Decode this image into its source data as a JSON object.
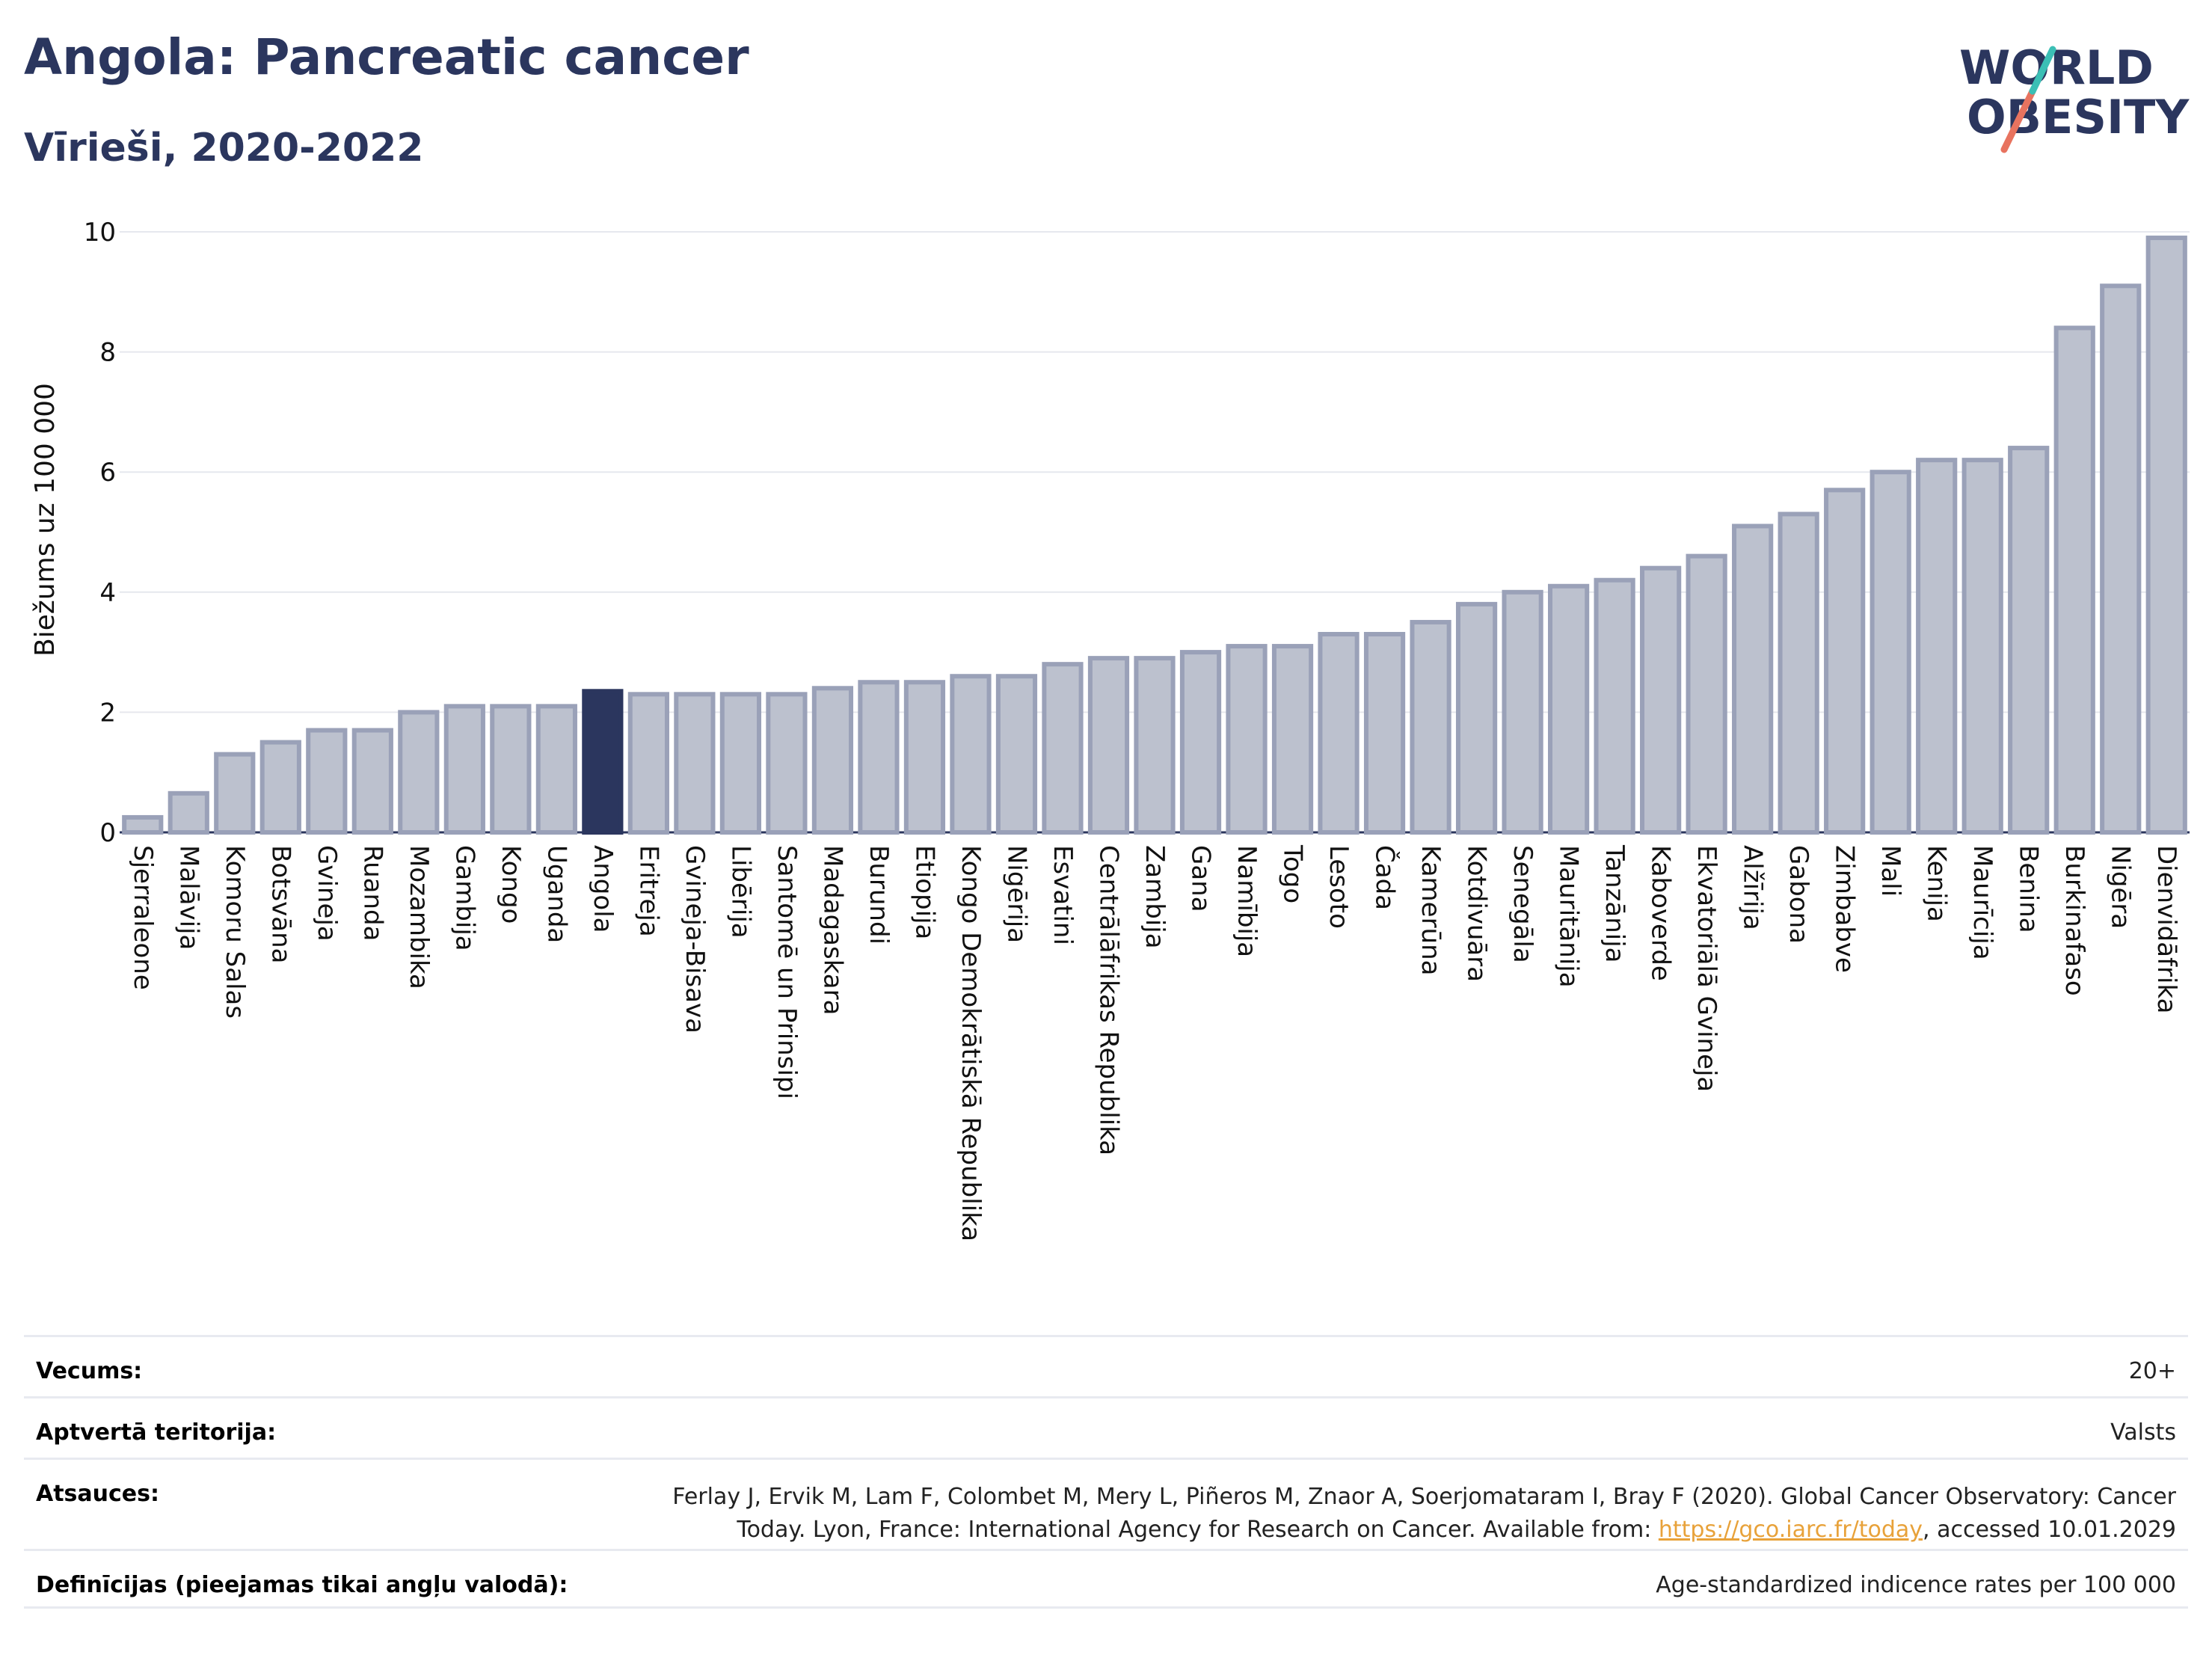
{
  "title": "Angola: Pancreatic cancer",
  "subtitle": "Vīrieši, 2020-2022",
  "logo": {
    "line1": "WORLD",
    "line2": "OBESITY"
  },
  "colors": {
    "highlight": "#2b365e",
    "bar": "#bcc1ce",
    "bar_stroke": "#9aa1b8",
    "grid": "#e6e8ee",
    "link": "#e8a23a"
  },
  "chart_data": {
    "type": "bar",
    "ylabel": "Biežums uz 100 000",
    "xlabel": "",
    "ylim": [
      0,
      10
    ],
    "yticks": [
      0,
      2,
      4,
      6,
      8,
      10
    ],
    "grid": true,
    "highlight": "Angola",
    "categories": [
      "Sjerraleone",
      "Malāvija",
      "Komoru Salas",
      "Botsvāna",
      "Gvineja",
      "Ruanda",
      "Mozambika",
      "Gambija",
      "Kongo",
      "Uganda",
      "Angola",
      "Eritreja",
      "Gvineja-Bisava",
      "Libērija",
      "Santomē un Prinsipi",
      "Madagaskara",
      "Burundi",
      "Etiopija",
      "Kongo Demokrātiskā Republika",
      "Nigērija",
      "Esvatini",
      "Centrālāfrikas Republika",
      "Zambija",
      "Gana",
      "Namībija",
      "Togo",
      "Lesoto",
      "Čada",
      "Kamerūna",
      "Kotdivuāra",
      "Senegāla",
      "Mauritānija",
      "Tanzānija",
      "Kaboverde",
      "Ekvatoriālā Gvineja",
      "Alžīrija",
      "Gabona",
      "Zimbabve",
      "Mali",
      "Kenija",
      "Maurīcija",
      "Benina",
      "Burkinafaso",
      "Nigēra",
      "Dienvidāfrika"
    ],
    "values": [
      0.25,
      0.65,
      1.3,
      1.5,
      1.7,
      1.7,
      2.0,
      2.1,
      2.1,
      2.1,
      2.35,
      2.3,
      2.3,
      2.3,
      2.3,
      2.4,
      2.5,
      2.5,
      2.6,
      2.6,
      2.8,
      2.9,
      2.9,
      3.0,
      3.1,
      3.1,
      3.3,
      3.3,
      3.5,
      3.8,
      4.0,
      4.1,
      4.2,
      4.4,
      4.6,
      5.1,
      5.3,
      5.7,
      6.0,
      6.2,
      6.2,
      6.4,
      8.4,
      9.1,
      9.9
    ]
  },
  "meta": {
    "age_label": "Vecums:",
    "age_value": "20+",
    "territory_label": "Aptvertā teritorija:",
    "territory_value": "Valsts",
    "refs_label": "Atsauces:",
    "refs_line1": "Ferlay J, Ervik M, Lam F, Colombet M, Mery L, Piñeros M, Znaor A, Soerjomataram I, Bray F (2020). Global Cancer Observatory: Cancer",
    "refs_line2_pre": "Today. Lyon, France: International Agency for Research on Cancer. Available from: ",
    "refs_link": "https://gco.iarc.fr/today",
    "refs_line2_post": ", accessed 10.01.2029",
    "defs_label": "Definīcijas (pieejamas tikai angļu valodā):",
    "defs_value": "Age-standardized indicence rates per 100 000"
  }
}
